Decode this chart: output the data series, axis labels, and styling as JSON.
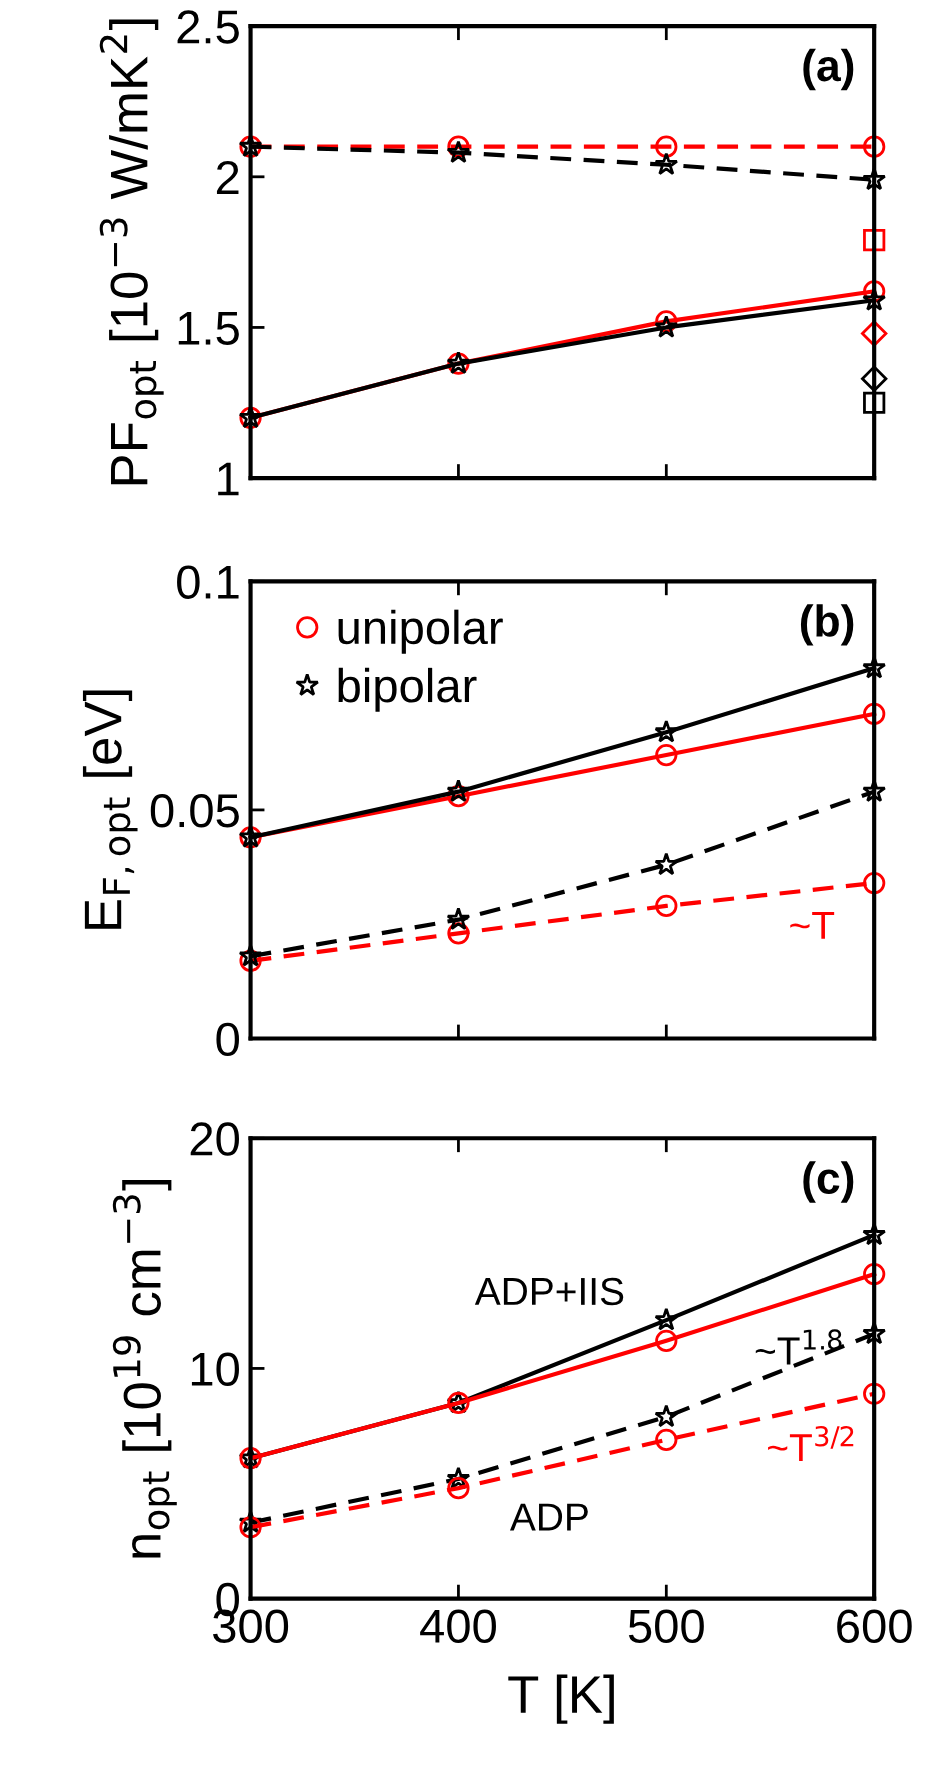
{
  "chart_data": [
    {
      "type": "line",
      "title": "(a)",
      "ylabel": "PF$_{opt}$ [10$^{−3}$ W/mK$^{2}$]",
      "x": [
        300,
        400,
        500,
        600
      ],
      "xlim": [
        300,
        600
      ],
      "xticks": [
        300,
        400,
        500,
        600
      ],
      "ylim": [
        1,
        2.5
      ],
      "yticks": [
        1,
        1.5,
        2,
        2.5
      ],
      "tick_labels": "y",
      "grid": false,
      "legend": false,
      "series": [
        {
          "color": "#ff0000",
          "marker": "circle",
          "line_style": "dashed",
          "values": [
            2.1,
            2.1,
            2.1,
            2.1
          ]
        },
        {
          "color": "#000000",
          "marker": "star",
          "line_style": "dashed",
          "values": [
            2.1,
            2.08,
            2.04,
            1.99
          ]
        },
        {
          "color": "#ff0000",
          "marker": "circle",
          "line_style": "solid",
          "values": [
            1.2,
            1.38,
            1.52,
            1.62
          ]
        },
        {
          "color": "#000000",
          "marker": "star",
          "line_style": "solid",
          "values": [
            1.2,
            1.38,
            1.5,
            1.59
          ]
        },
        {
          "type": "scatter",
          "color": "#ff0000",
          "marker": "square",
          "values": [
            null,
            null,
            null,
            1.79
          ]
        },
        {
          "type": "scatter",
          "color": "#ff0000",
          "marker": "diamond",
          "values": [
            null,
            null,
            null,
            1.48
          ]
        },
        {
          "type": "scatter",
          "color": "#000000",
          "marker": "diamond",
          "values": [
            null,
            null,
            null,
            1.33
          ]
        },
        {
          "type": "scatter",
          "color": "#000000",
          "marker": "square",
          "values": [
            null,
            null,
            null,
            1.25
          ]
        }
      ]
    },
    {
      "type": "line",
      "title": "(b)",
      "ylabel": "E$_{F,opt}$ [eV]",
      "x": [
        300,
        400,
        500,
        600
      ],
      "xlim": [
        300,
        600
      ],
      "xticks": [
        300,
        400,
        500,
        600
      ],
      "ylim": [
        0,
        0.1
      ],
      "yticks": [
        0,
        0.05,
        0.1
      ],
      "tick_labels": "y",
      "grid": false,
      "legend": "top left",
      "annotations": [
        "~T"
      ],
      "series": [
        {
          "name": "unipolar",
          "color": "#ff0000",
          "marker": "circle",
          "line_style": "solid",
          "values": [
            0.044,
            0.053,
            0.062,
            0.071
          ]
        },
        {
          "name": "bipolar",
          "color": "#000000",
          "marker": "star",
          "line_style": "solid",
          "values": [
            0.044,
            0.054,
            0.067,
            0.081
          ]
        },
        {
          "color": "#ff0000",
          "marker": "circle",
          "line_style": "dashed",
          "values": [
            0.017,
            0.023,
            0.029,
            0.034
          ]
        },
        {
          "color": "#000000",
          "marker": "star",
          "line_style": "dashed",
          "values": [
            0.018,
            0.026,
            0.038,
            0.054
          ]
        }
      ]
    },
    {
      "type": "line",
      "title": "(c)",
      "xlabel": "T [K]",
      "ylabel": "n$_{opt}$ [10$^{19}$ cm$^{−3}$]",
      "x": [
        300,
        400,
        500,
        600
      ],
      "xlim": [
        300,
        600
      ],
      "xticks": [
        300,
        400,
        500,
        600
      ],
      "ylim": [
        0,
        20
      ],
      "yticks": [
        0,
        10,
        20
      ],
      "grid": false,
      "legend": false,
      "annotations": [
        "ADP+IIS",
        "ADP",
        "~T$^{1.8}$",
        "~T$^{3/2}$"
      ],
      "series": [
        {
          "color": "#000000",
          "marker": "star",
          "line_style": "solid",
          "values": [
            6.1,
            8.5,
            12.1,
            15.8
          ]
        },
        {
          "color": "#ff0000",
          "marker": "circle",
          "line_style": "solid",
          "values": [
            6.1,
            8.5,
            11.2,
            14.1
          ]
        },
        {
          "color": "#000000",
          "marker": "star",
          "line_style": "dashed",
          "values": [
            3.3,
            5.2,
            7.9,
            11.5
          ]
        },
        {
          "color": "#ff0000",
          "marker": "circle",
          "line_style": "dashed",
          "values": [
            3.1,
            4.8,
            6.9,
            8.9
          ]
        }
      ]
    }
  ]
}
